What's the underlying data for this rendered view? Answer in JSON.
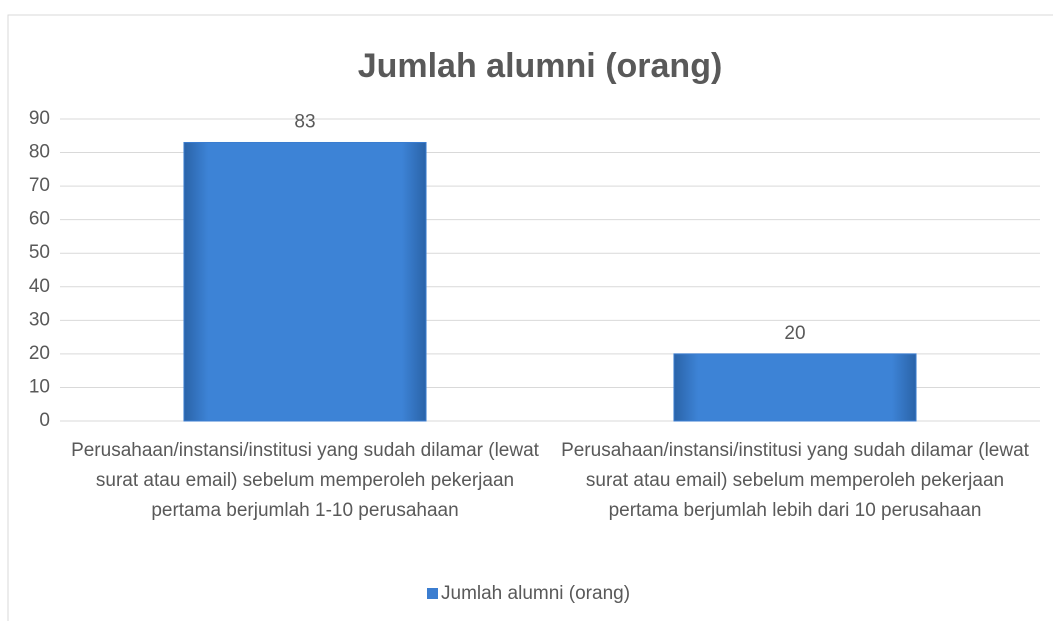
{
  "chart_data": {
    "type": "bar",
    "title": "Jumlah alumni (orang)",
    "categories": [
      "Perusahaan/instansi/institusi yang sudah dilamar (lewat surat atau email) sebelum memperoleh pekerjaan pertama berjumlah 1-10 perusahaan",
      "Perusahaan/instansi/institusi yang sudah dilamar (lewat surat atau email) sebelum memperoleh pekerjaan pertama  berjumlah lebih dari 10 perusahaan"
    ],
    "series": [
      {
        "name": "Jumlah alumni (orang)",
        "color": "#3b7dd0",
        "values": [
          83,
          20
        ]
      }
    ],
    "ylim": [
      0,
      90
    ],
    "yticks": [
      0,
      10,
      20,
      30,
      40,
      50,
      60,
      70,
      80,
      90
    ],
    "grid": true,
    "legend": "bottom"
  }
}
